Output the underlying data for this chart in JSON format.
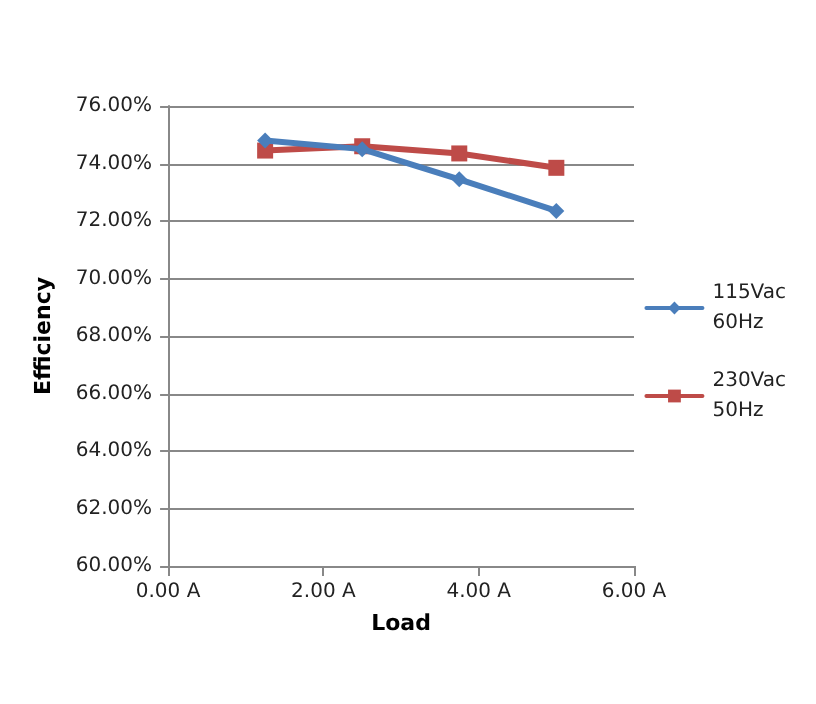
{
  "chart_data": {
    "type": "line",
    "xlabel": "Load",
    "ylabel": "Efficiency",
    "xlim": [
      0,
      6
    ],
    "xticks": [
      {
        "value": 0,
        "label": "0.00 A"
      },
      {
        "value": 2,
        "label": "2.00 A"
      },
      {
        "value": 4,
        "label": "4.00 A"
      },
      {
        "value": 6,
        "label": "6.00 A"
      }
    ],
    "ylim": [
      60,
      76
    ],
    "yticks": [
      {
        "value": 60,
        "label": "60.00%"
      },
      {
        "value": 62,
        "label": "62.00%"
      },
      {
        "value": 64,
        "label": "64.00%"
      },
      {
        "value": 66,
        "label": "66.00%"
      },
      {
        "value": 68,
        "label": "68.00%"
      },
      {
        "value": 70,
        "label": "70.00%"
      },
      {
        "value": 72,
        "label": "72.00%"
      },
      {
        "value": 74,
        "label": "74.00%"
      },
      {
        "value": 76,
        "label": "76.00%"
      }
    ],
    "x": [
      1.25,
      2.5,
      3.75,
      5
    ],
    "series": [
      {
        "name": "115Vac 60Hz",
        "color": "#4a7ebb",
        "marker": "diamond",
        "values": [
          74.8,
          74.5,
          73.45,
          72.35
        ]
      },
      {
        "name": "230Vac 50Hz",
        "color": "#be4b48",
        "marker": "square",
        "values": [
          74.45,
          74.6,
          74.35,
          73.85
        ]
      }
    ],
    "grid": "y",
    "legend": "right",
    "line_style": "solid"
  }
}
